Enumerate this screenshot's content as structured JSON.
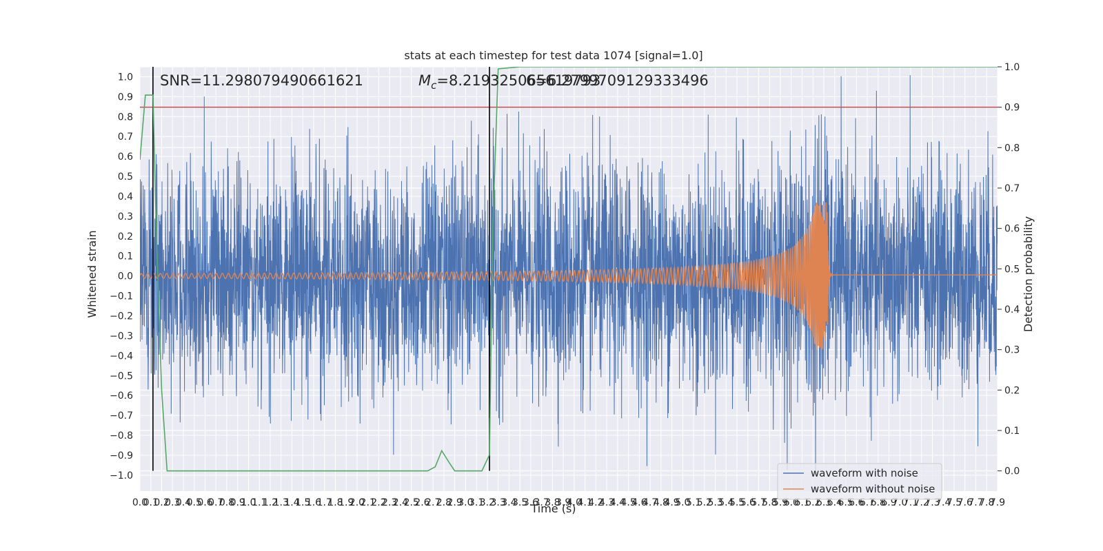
{
  "chart_data": {
    "type": "line",
    "title": "stats at each timestep for test data 1074 [signal=1.0]",
    "xlabel": "Time (s)",
    "ylabel_left": "Whitened strain",
    "ylabel_right": "Detection probability",
    "xlim": [
      0.0,
      7.9
    ],
    "ylim_left": [
      -1.08,
      1.05
    ],
    "ylim_right": [
      -0.05,
      1.0
    ],
    "x_ticks": [
      0.0,
      0.1,
      0.2,
      0.3,
      0.4,
      0.5,
      0.6,
      0.7,
      0.8,
      0.9,
      1.0,
      1.1,
      1.2,
      1.3,
      1.4,
      1.5,
      1.6,
      1.7,
      1.8,
      1.9,
      2.0,
      2.1,
      2.2,
      2.3,
      2.4,
      2.5,
      2.6,
      2.7,
      2.8,
      2.9,
      3.0,
      3.1,
      3.2,
      3.3,
      3.4,
      3.5,
      3.6,
      3.7,
      3.8,
      3.9,
      4.0,
      4.1,
      4.2,
      4.3,
      4.4,
      4.5,
      4.6,
      4.7,
      4.8,
      4.9,
      5.0,
      5.1,
      5.2,
      5.3,
      5.4,
      5.5,
      5.6,
      5.7,
      5.8,
      5.9,
      6.0,
      6.1,
      6.2,
      6.3,
      6.4,
      6.5,
      6.6,
      6.7,
      6.8,
      6.9,
      7.0,
      7.1,
      7.2,
      7.3,
      7.4,
      7.5,
      7.6,
      7.7,
      7.8,
      7.9
    ],
    "x_tick_labels": [
      "0.0",
      "0.1",
      "0.2",
      "0.3",
      "0.4",
      "0.5",
      "0.6",
      "0.7",
      "0.8",
      "0.9",
      "1.0",
      "1.1",
      "1.2",
      "1.3",
      "1.4",
      "1.5",
      "1.6",
      "1.7",
      "1.8",
      "1.9",
      "2.0",
      "2.1",
      "2.2",
      "2.3",
      "2.4",
      "2.5",
      "2.6",
      "2.7",
      "2.8",
      "2.9",
      "3.0",
      "3.1",
      "3.2",
      "3.3",
      "3.4",
      "3.5",
      "3.6",
      "3.7",
      "3.8",
      "3.9",
      "4.0",
      "4.1",
      "4.2",
      "4.3",
      "4.4",
      "4.5",
      "4.6",
      "4.7",
      "4.8",
      "4.9",
      "5.0",
      "5.1",
      "5.2",
      "5.3",
      "5.4",
      "5.5",
      "5.6",
      "5.7",
      "5.8",
      "5.9",
      "6.0",
      "6.1",
      "6.2",
      "6.3",
      "6.4",
      "6.5",
      "6.6",
      "6.7",
      "6.8",
      "6.9",
      "7.0",
      "7.1",
      "7.2",
      "7.3",
      "7.4",
      "7.5",
      "7.6",
      "7.7",
      "7.8",
      "7.9"
    ],
    "y_ticks_left": [
      1.0,
      0.9,
      0.8,
      0.7,
      0.6,
      0.5,
      0.4,
      0.3,
      0.2,
      0.1,
      0.0,
      -0.1,
      -0.2,
      -0.3,
      -0.4,
      -0.5,
      -0.6,
      -0.7,
      -0.8,
      -0.9,
      -1.0
    ],
    "y_tick_labels_left": [
      "1.0",
      "0.9",
      "0.8",
      "0.7",
      "0.6",
      "0.5",
      "0.4",
      "0.3",
      "0.2",
      "0.1",
      "0.0",
      "−0.1",
      "−0.2",
      "−0.3",
      "−0.4",
      "−0.5",
      "−0.6",
      "−0.7",
      "−0.8",
      "−0.9",
      "−1.0"
    ],
    "y_ticks_right": [
      1.0,
      0.9,
      0.8,
      0.7,
      0.6,
      0.5,
      0.4,
      0.3,
      0.2,
      0.1,
      0.0
    ],
    "y_tick_labels_right": [
      "1.0",
      "0.9",
      "0.8",
      "0.7",
      "0.6",
      "0.5",
      "0.4",
      "0.3",
      "0.2",
      "0.1",
      "0.0"
    ],
    "grid": true,
    "annotations": {
      "snr_text": "SNR=11.298079490661621",
      "mc_symbol": "M",
      "mc_subscript": "c",
      "mc_text": "=8.219325065619793",
      "mc_overlap_text": "6=6.2799709129333496"
    },
    "vertical_lines": [
      0.12,
      3.22
    ],
    "threshold_line": {
      "axis": "right",
      "y": 0.9,
      "color": "#c44e52"
    },
    "detection_probability": {
      "x": [
        0.0,
        0.05,
        0.12,
        0.15,
        0.2,
        0.25,
        0.3,
        0.5,
        1.0,
        1.5,
        2.0,
        2.5,
        2.65,
        2.72,
        2.78,
        2.85,
        2.9,
        3.0,
        3.15,
        3.22,
        3.25,
        3.3,
        3.5,
        4.0,
        5.0,
        6.0,
        7.0,
        7.9
      ],
      "y": [
        0.77,
        0.93,
        0.93,
        0.6,
        0.2,
        0.0,
        0.0,
        0.0,
        0.0,
        0.0,
        0.0,
        0.0,
        0.0,
        0.01,
        0.05,
        0.02,
        0.0,
        0.0,
        0.0,
        0.04,
        0.6,
        0.995,
        1.0,
        1.0,
        1.0,
        1.0,
        1.0,
        1.0
      ]
    },
    "series": [
      {
        "name": "waveform with noise",
        "color": "#4c72b0",
        "description_noise_std": 0.28,
        "noise_seed": 1074
      },
      {
        "name": "waveform without noise",
        "color": "#dd8452",
        "chirp_start_amplitude": 0.012,
        "merger_time": 6.33,
        "peak_amplitude": 0.37
      }
    ],
    "prob_color": "#55a868",
    "legend": {
      "placement": "lower-right",
      "entries": [
        "waveform with noise",
        "waveform without noise"
      ]
    }
  }
}
